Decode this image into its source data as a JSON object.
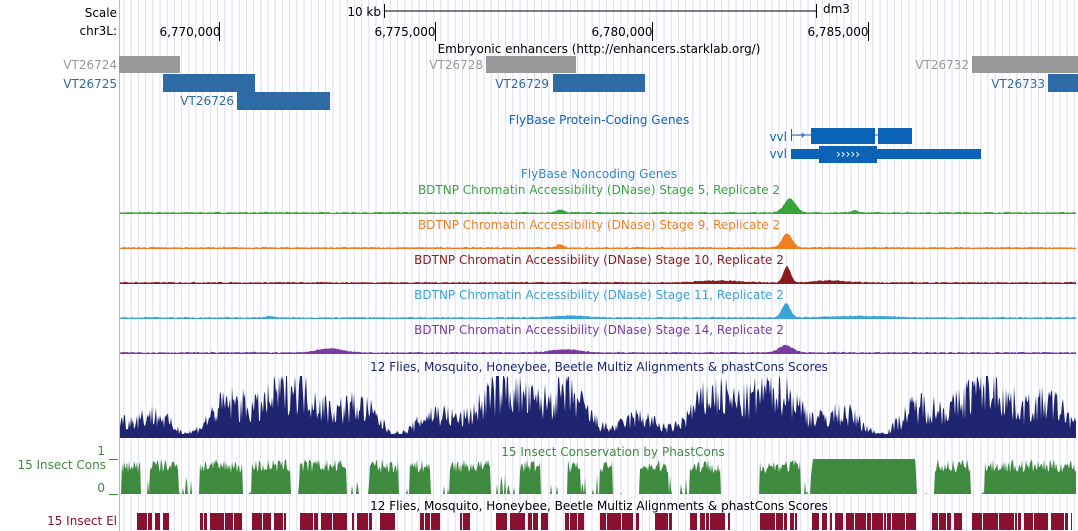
{
  "colors": {
    "gridline": "#c8c8ff",
    "left_border": "#f0a0a0",
    "enhancer_gray": "#999999",
    "enhancer_blue": "#2e6aa6",
    "gene_blue": "#0b63b8",
    "noncoding_label": "#2c8ad0",
    "stage5": "#39a539",
    "stage9": "#f07f22",
    "stage10": "#8b1a1a",
    "stage11": "#3aa3d8",
    "stage14": "#7a3aa0",
    "peak_top": "#c020c0",
    "multiz": "#1e2470",
    "phastcons": "#3e8a3e",
    "elements": "#8a1030"
  },
  "ruler": {
    "scale_label": "Scale",
    "scale_value": "10 kb",
    "assembly": "dm3",
    "chrom_label": "chr3L:",
    "ticks": [
      "6,770,000",
      "6,775,000",
      "6,780,000",
      "6,785,000"
    ]
  },
  "tracks": {
    "enhancers_title": "Embryonic enhancers (http://enhancers.starklab.org/)",
    "enhancers": [
      {
        "name": "VT26724",
        "color": "gray"
      },
      {
        "name": "VT26725",
        "color": "blue"
      },
      {
        "name": "VT26726",
        "color": "blue"
      },
      {
        "name": "VT26728",
        "color": "gray"
      },
      {
        "name": "VT26729",
        "color": "blue"
      },
      {
        "name": "VT26732",
        "color": "gray"
      },
      {
        "name": "VT26733",
        "color": "blue"
      }
    ],
    "genes_title": "FlyBase Protein-Coding Genes",
    "gene_names": [
      "vvl",
      "vvl"
    ],
    "gene_strand_arrows": "›››››",
    "noncoding_title": "FlyBase Noncoding Genes",
    "dnase_titles": [
      "BDTNP Chromatin Accessibility (DNase) Stage 5, Replicate 2",
      "BDTNP Chromatin Accessibility (DNase) Stage 9, Replicate 2",
      "BDTNP Chromatin Accessibility (DNase) Stage 10, Replicate 2",
      "BDTNP Chromatin Accessibility (DNase) Stage 11, Replicate 2",
      "BDTNP Chromatin Accessibility (DNase) Stage 14, Replicate 2"
    ],
    "multiz_title": "12 Flies, Mosquito, Honeybee, Beetle Multiz Alignments & phastCons Scores",
    "phastcons_title": "15 Insect Conservation by PhastCons",
    "phastcons_side_label": "15 Insect Cons",
    "phastcons_axis_max": "1",
    "phastcons_axis_min": "0",
    "elements_title": "12 Flies, Mosquito, Honeybee, Beetle Multiz Alignments & phastCons Scores",
    "elements_side_label": "15 Insect El"
  }
}
